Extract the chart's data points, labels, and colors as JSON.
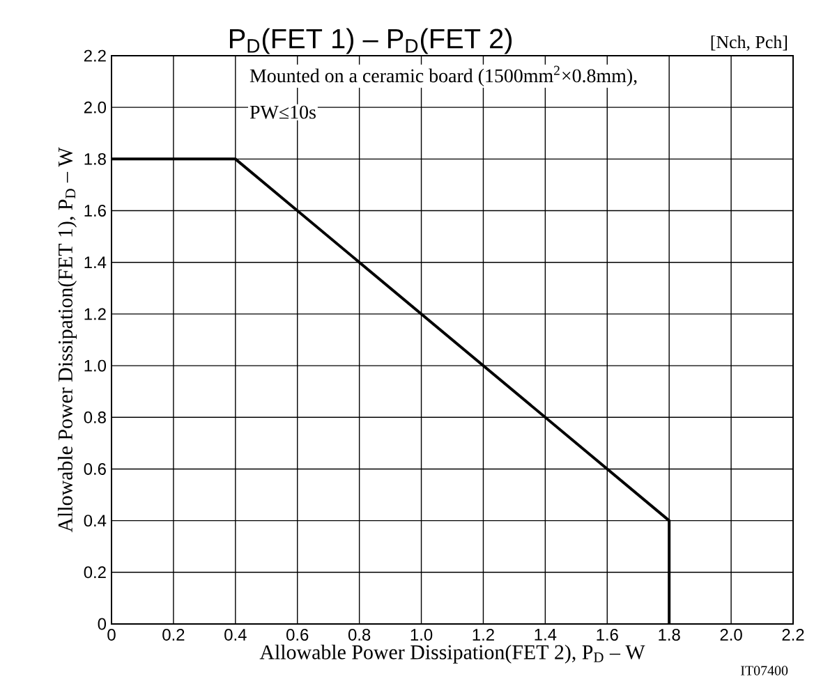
{
  "chart_data": {
    "type": "line",
    "title": "P$_{D}$(FET 1)  –  P$_{D}$(FET 2)",
    "xlabel": "Allowable Power Dissipation(FET 2), P$_{D}$  –  W",
    "ylabel": "Allowable Power Dissipation(FET 1), P$_{D}$  –  W",
    "x": [
      0,
      0.4,
      1.8,
      1.8
    ],
    "values": [
      1.8,
      1.8,
      0.4,
      0
    ],
    "color": "#000000",
    "xlim": [
      0,
      2.2
    ],
    "ylim": [
      0,
      2.2
    ],
    "xticks": [
      0,
      0.2,
      0.4,
      0.6,
      0.8,
      {
        "value": 1,
        "label": "1.0"
      },
      1.2,
      1.4,
      1.6,
      1.8,
      {
        "value": 2,
        "label": "2.0"
      },
      2.2
    ],
    "yticks": [
      0,
      0.2,
      0.4,
      0.6,
      0.8,
      {
        "value": 1,
        "label": "1.0"
      },
      1.2,
      1.4,
      1.6,
      1.8,
      {
        "value": 2,
        "label": "2.0"
      },
      2.2
    ],
    "grid": true,
    "annotations": [
      "[Nch, Pch]",
      "Mounted on a ceramic board (1500mm$^{2}$×0.8mm),",
      "PW≤10s",
      "IT07400"
    ]
  }
}
